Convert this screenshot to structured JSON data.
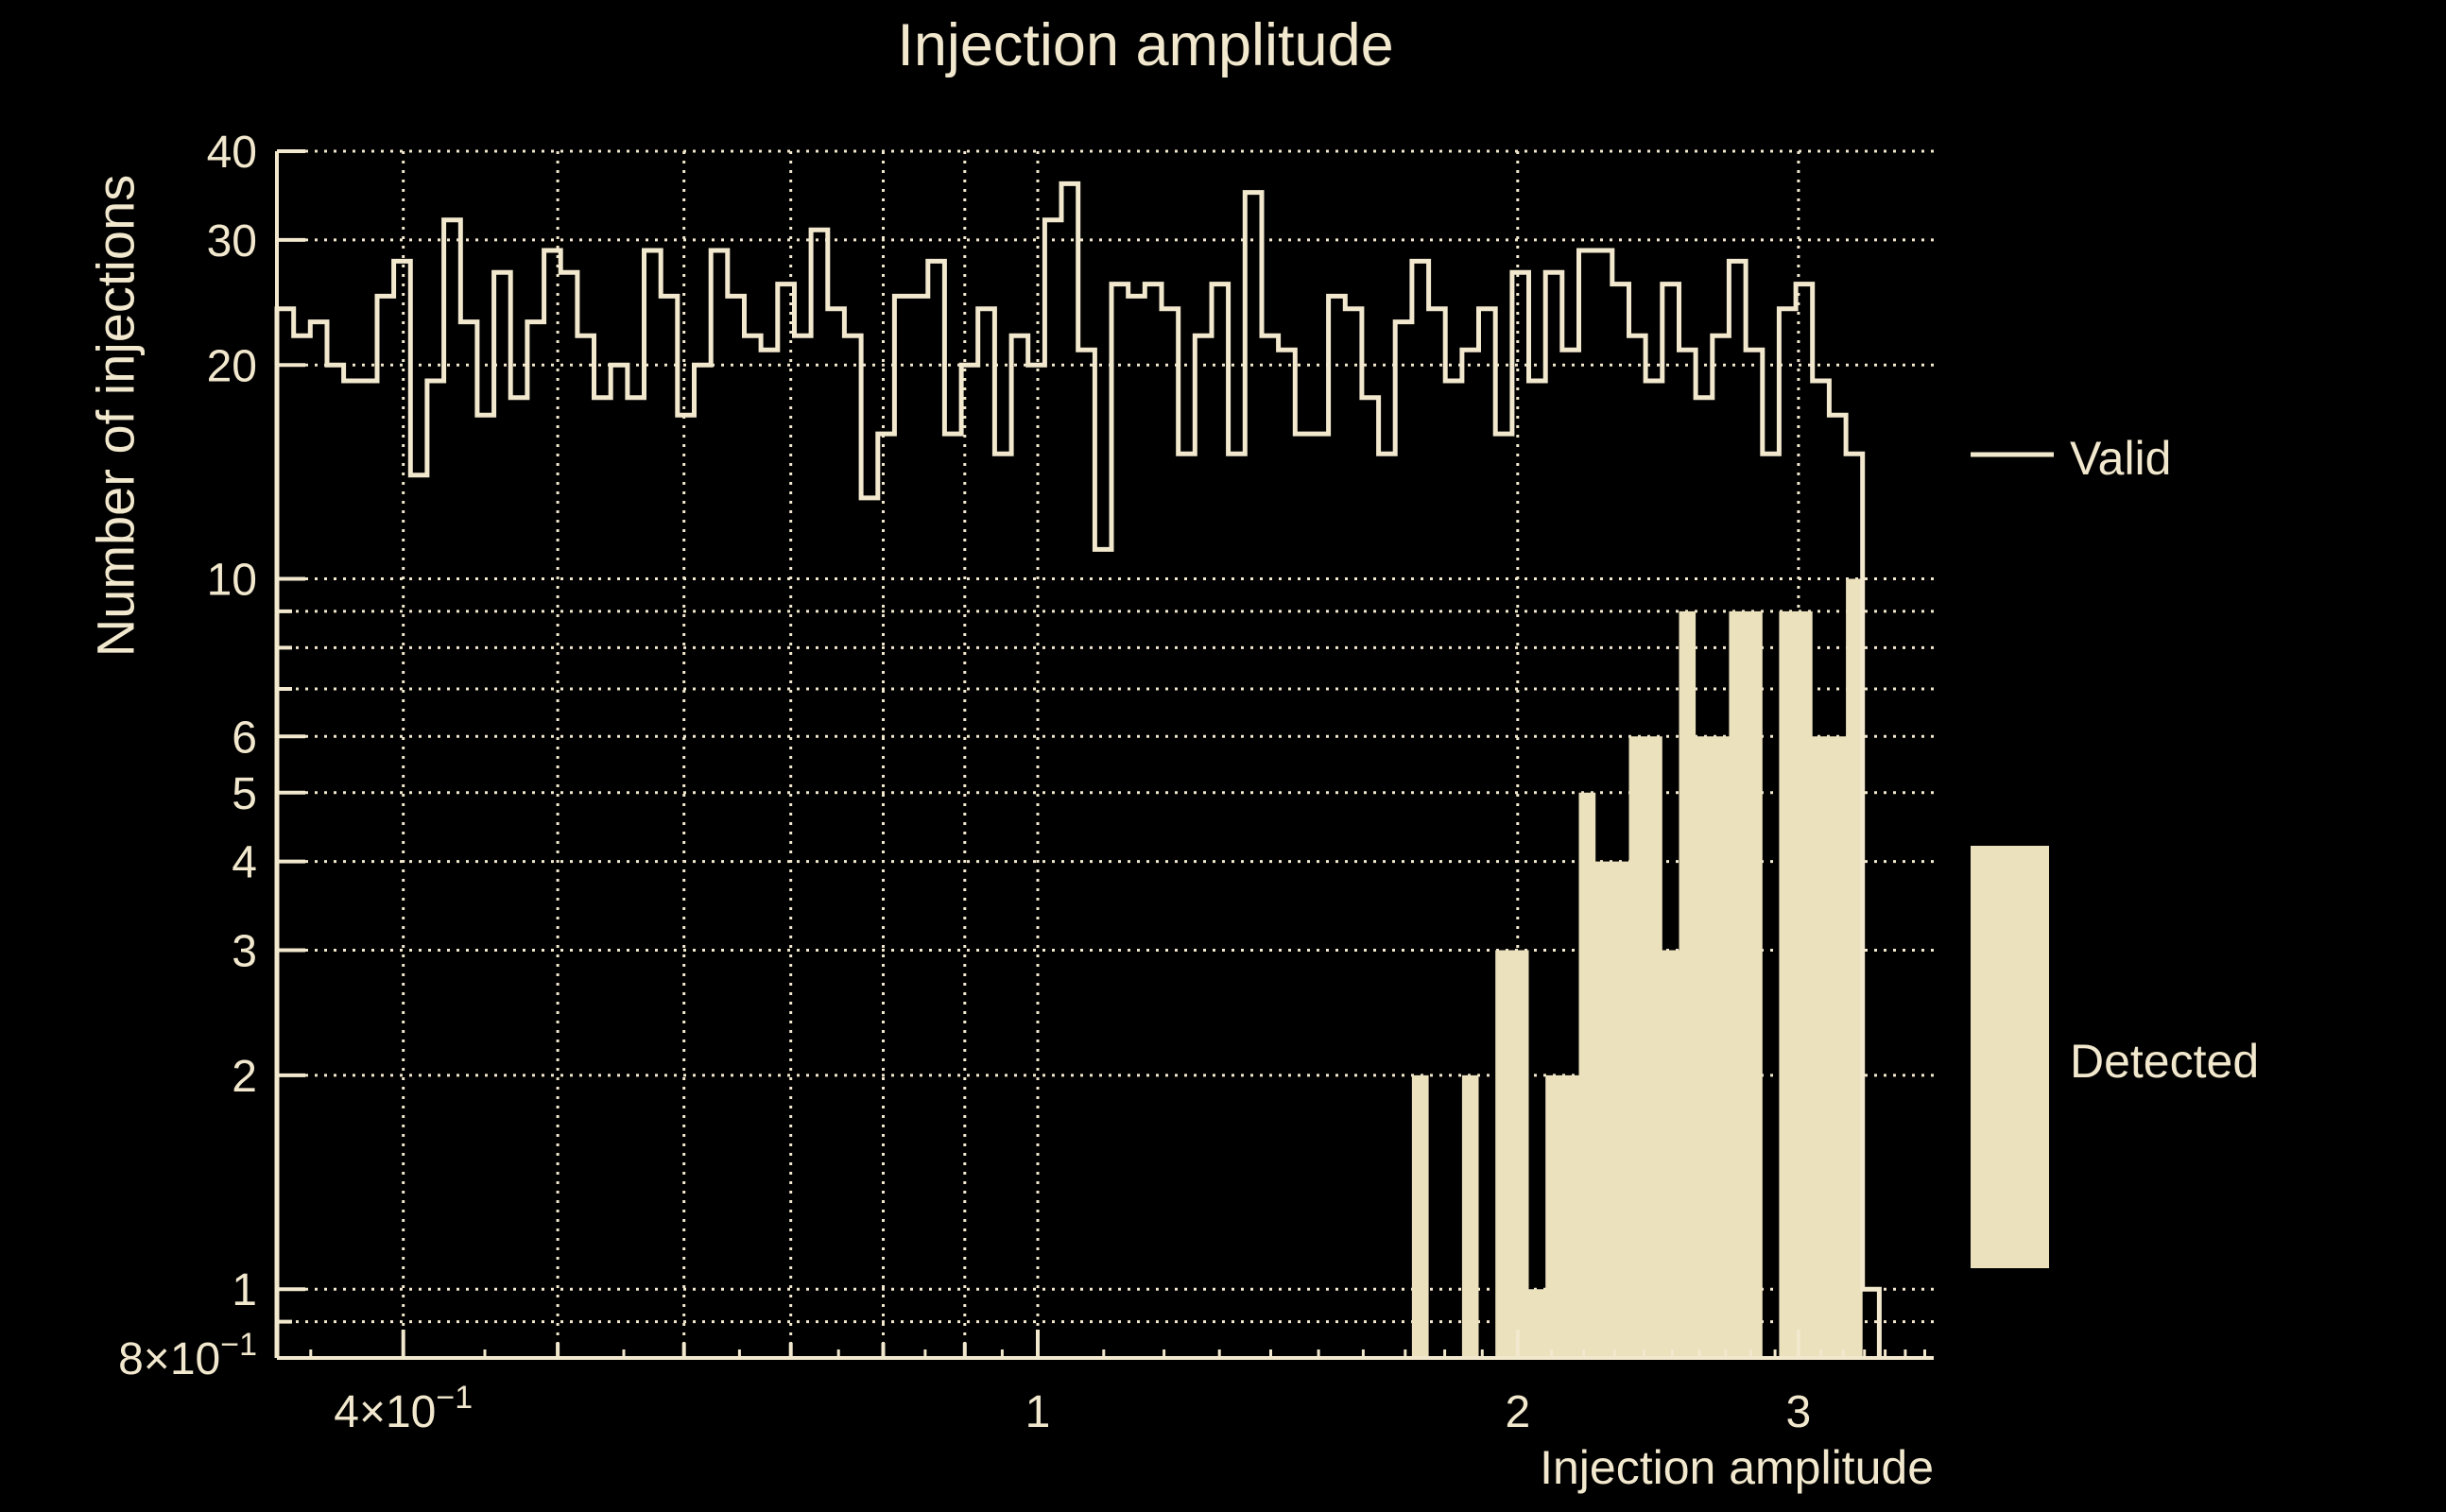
{
  "colors": {
    "background": "#000000",
    "foreground": "#f2e8ce",
    "fill": "#ece1bd"
  },
  "legend": {
    "valid_label": "Valid",
    "detected_label": "Detected"
  },
  "chart_data": {
    "type": "histogram",
    "title": "Injection amplitude",
    "xlabel": "Injection amplitude",
    "ylabel": "Number of injections",
    "x_scale": "log",
    "y_scale": "log",
    "xlim": [
      0.3333,
      3.647
    ],
    "ylim": [
      0.8,
      40
    ],
    "grid": "dotted",
    "legend_position": "right",
    "n_bins": 96,
    "bin_start": 0.3333,
    "bin_end": 3.3712,
    "x_gridlines": [
      0.4,
      0.5,
      0.6,
      0.7,
      0.8,
      0.9,
      1,
      2,
      3
    ],
    "y_gridlines": [
      0.9,
      1,
      2,
      3,
      4,
      5,
      6,
      7,
      8,
      9,
      10,
      20,
      30,
      40
    ],
    "x_ticks": [
      {
        "value": 0.4,
        "text": "4×10",
        "exp": "−1"
      },
      {
        "value": 1,
        "text": "1",
        "exp": ""
      },
      {
        "value": 2,
        "text": "2",
        "exp": ""
      },
      {
        "value": 3,
        "text": "3",
        "exp": ""
      }
    ],
    "y_ticks": [
      {
        "value": 40,
        "text": "40",
        "exp": ""
      },
      {
        "value": 30,
        "text": "30",
        "exp": ""
      },
      {
        "value": 20,
        "text": "20",
        "exp": ""
      },
      {
        "value": 10,
        "text": "10",
        "exp": ""
      },
      {
        "value": 6,
        "text": "6",
        "exp": ""
      },
      {
        "value": 5,
        "text": "5",
        "exp": ""
      },
      {
        "value": 4,
        "text": "4",
        "exp": ""
      },
      {
        "value": 3,
        "text": "3",
        "exp": ""
      },
      {
        "value": 2,
        "text": "2",
        "exp": ""
      },
      {
        "value": 1,
        "text": "1",
        "exp": ""
      },
      {
        "value": 0.8,
        "text": "8×10",
        "exp": "−1"
      }
    ],
    "series": [
      {
        "name": "Valid",
        "style": "step-line",
        "values": [
          24,
          22,
          23,
          20,
          19,
          19,
          25,
          28,
          14,
          19,
          32,
          23,
          17,
          27,
          18,
          23,
          29,
          27,
          22,
          18,
          20,
          18,
          29,
          25,
          17,
          20,
          29,
          25,
          22,
          21,
          26,
          22,
          31,
          24,
          22,
          13,
          16,
          25,
          25,
          28,
          16,
          20,
          24,
          15,
          22,
          20,
          32,
          36,
          21,
          11,
          26,
          25,
          26,
          24,
          15,
          22,
          26,
          15,
          35,
          22,
          21,
          16,
          16,
          25,
          24,
          18,
          15,
          23,
          28,
          24,
          19,
          21,
          24,
          16,
          27,
          19,
          27,
          21,
          29,
          29,
          26,
          22,
          19,
          26,
          21,
          18,
          22,
          28,
          21,
          15,
          24,
          26,
          19,
          17,
          15,
          1
        ]
      },
      {
        "name": "Detected",
        "style": "filled",
        "values": [
          0,
          0,
          0,
          0,
          0,
          0,
          0,
          0,
          0,
          0,
          0,
          0,
          0,
          0,
          0,
          0,
          0,
          0,
          0,
          0,
          0,
          0,
          0,
          0,
          0,
          0,
          0,
          0,
          0,
          0,
          0,
          0,
          0,
          0,
          0,
          0,
          0,
          0,
          0,
          0,
          0,
          0,
          0,
          0,
          0,
          0,
          0,
          0,
          0,
          0,
          0,
          0,
          0,
          0,
          0,
          0,
          0,
          0,
          0,
          0,
          0,
          0,
          0,
          0,
          0,
          0,
          0,
          0,
          2,
          0,
          0,
          2,
          0,
          3,
          3,
          1,
          2,
          2,
          5,
          4,
          4,
          6,
          6,
          3,
          9,
          6,
          6,
          9,
          9,
          0,
          9,
          9,
          6,
          6,
          10,
          0
        ]
      }
    ]
  }
}
